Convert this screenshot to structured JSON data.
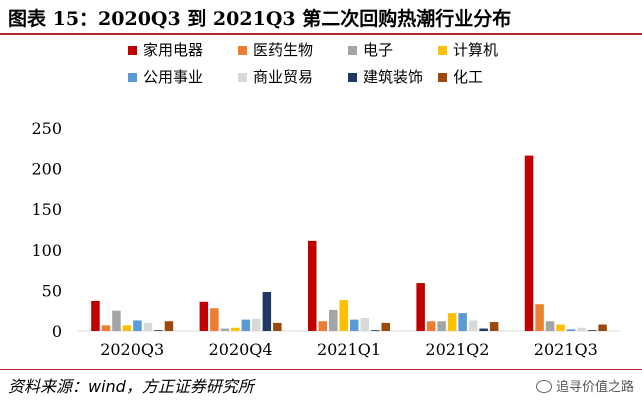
{
  "title": "图表 15：2020Q3 到 2021Q3 第二次回购热潮行业分布",
  "source": "资料来源：wind，方正证券研究所",
  "watermark": "追寻价值之路",
  "chart_data": {
    "type": "bar",
    "categories": [
      "2020Q3",
      "2020Q4",
      "2021Q1",
      "2021Q2",
      "2021Q3"
    ],
    "ylim": [
      0,
      250
    ],
    "yticks": [
      0,
      50,
      100,
      150,
      200,
      250
    ],
    "grid": false,
    "legend_placement": "top",
    "series": [
      {
        "name": "家用电器",
        "color": "#c00000",
        "values": [
          37,
          36,
          111,
          59,
          216
        ]
      },
      {
        "name": "医药生物",
        "color": "#ed7d31",
        "values": [
          7,
          28,
          12,
          12,
          33
        ]
      },
      {
        "name": "电子",
        "color": "#a5a5a5",
        "values": [
          25,
          3,
          26,
          12,
          12
        ]
      },
      {
        "name": "计算机",
        "color": "#ffc000",
        "values": [
          7,
          4,
          38,
          22,
          8
        ]
      },
      {
        "name": "公用事业",
        "color": "#5b9bd5",
        "values": [
          13,
          14,
          14,
          22,
          2
        ]
      },
      {
        "name": "商业贸易",
        "color": "#d9d9d9",
        "values": [
          10,
          15,
          16,
          13,
          4
        ]
      },
      {
        "name": "建筑装饰",
        "color": "#203864",
        "values": [
          1,
          48,
          1,
          3,
          1
        ]
      },
      {
        "name": "化工",
        "color": "#9e480e",
        "values": [
          12,
          10,
          10,
          11,
          8
        ]
      }
    ]
  }
}
